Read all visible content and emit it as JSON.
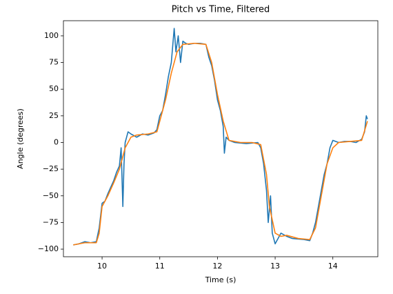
{
  "chart_data": {
    "type": "line",
    "title": "Pitch vs Time, Filtered",
    "xlabel": "Time (s)",
    "ylabel": "Angle (degrees)",
    "xlim": [
      9.33,
      14.78
    ],
    "ylim": [
      -107.1,
      114.2
    ],
    "xticks": [
      10,
      11,
      12,
      13,
      14
    ],
    "yticks": [
      {
        "value": -100,
        "label": "−100"
      },
      {
        "value": -75,
        "label": "−75"
      },
      {
        "value": -50,
        "label": "−50"
      },
      {
        "value": -25,
        "label": "−25"
      },
      0,
      25,
      50,
      75,
      100
    ],
    "grid": false,
    "series": [
      {
        "color": "#1f77b4",
        "x": [
          9.5,
          9.6,
          9.7,
          9.8,
          9.9,
          9.95,
          10.0,
          10.05,
          10.1,
          10.15,
          10.2,
          10.25,
          10.3,
          10.33,
          10.36,
          10.38,
          10.4,
          10.45,
          10.5,
          10.6,
          10.7,
          10.8,
          10.9,
          10.95,
          11.0,
          11.05,
          11.1,
          11.15,
          11.2,
          11.25,
          11.28,
          11.32,
          11.36,
          11.4,
          11.45,
          11.5,
          11.6,
          11.7,
          11.8,
          11.85,
          11.9,
          11.95,
          12.0,
          12.05,
          12.1,
          12.12,
          12.15,
          12.2,
          12.3,
          12.5,
          12.7,
          12.75,
          12.8,
          12.85,
          12.88,
          12.92,
          12.95,
          13.0,
          13.05,
          13.1,
          13.2,
          13.3,
          13.5,
          13.6,
          13.65,
          13.7,
          13.75,
          13.8,
          13.85,
          13.9,
          13.95,
          14.0,
          14.1,
          14.2,
          14.3,
          14.4,
          14.5,
          14.55,
          14.58,
          14.6
        ],
        "values": [
          -96,
          -95,
          -93,
          -94,
          -93,
          -80,
          -57,
          -55,
          -48,
          -42,
          -36,
          -28,
          -22,
          -5,
          -60,
          -20,
          0,
          10,
          8,
          5,
          8,
          7,
          9,
          12,
          25,
          30,
          45,
          62,
          75,
          107,
          85,
          100,
          75,
          95,
          93,
          92,
          93,
          93,
          92,
          80,
          72,
          58,
          40,
          30,
          15,
          -10,
          5,
          2,
          0,
          -1,
          0,
          -5,
          -20,
          -45,
          -75,
          -50,
          -85,
          -95,
          -90,
          -85,
          -88,
          -90,
          -91,
          -92,
          -85,
          -75,
          -60,
          -45,
          -30,
          -20,
          -5,
          2,
          0,
          1,
          1,
          0,
          3,
          10,
          25,
          22
        ]
      },
      {
        "color": "#ff7f0e",
        "x": [
          9.5,
          9.7,
          9.9,
          9.95,
          10.0,
          10.1,
          10.2,
          10.3,
          10.35,
          10.4,
          10.5,
          10.6,
          10.8,
          10.95,
          11.0,
          11.1,
          11.2,
          11.3,
          11.4,
          11.6,
          11.8,
          11.9,
          12.0,
          12.1,
          12.2,
          12.4,
          12.6,
          12.75,
          12.85,
          12.9,
          13.0,
          13.1,
          13.2,
          13.4,
          13.6,
          13.7,
          13.8,
          13.9,
          14.0,
          14.1,
          14.3,
          14.5,
          14.6
        ],
        "values": [
          -96,
          -94,
          -94,
          -85,
          -60,
          -50,
          -38,
          -25,
          -15,
          -5,
          5,
          7,
          8,
          10,
          20,
          40,
          65,
          85,
          92,
          93,
          92,
          75,
          45,
          20,
          2,
          0,
          0,
          -2,
          -30,
          -60,
          -85,
          -88,
          -87,
          -90,
          -91,
          -80,
          -50,
          -20,
          -5,
          0,
          1,
          2,
          20
        ]
      }
    ]
  }
}
